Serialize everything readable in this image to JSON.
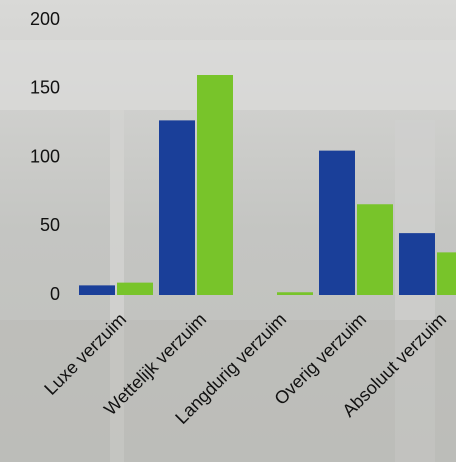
{
  "chart_data": {
    "type": "bar",
    "categories": [
      "Luxe verzuim",
      "Wettelijk verzuim",
      "Langdurig verzuim",
      "Overig verzuim",
      "Absoluut verzuim"
    ],
    "series": [
      {
        "color": "#1a3f99",
        "values": [
          7,
          127,
          0,
          105,
          45
        ]
      },
      {
        "color": "#78c42a",
        "values": [
          9,
          160,
          2,
          66,
          31
        ]
      }
    ],
    "ylim": [
      0,
      200
    ],
    "yticks": [
      0,
      50,
      100,
      150,
      200
    ],
    "grid": false
  }
}
